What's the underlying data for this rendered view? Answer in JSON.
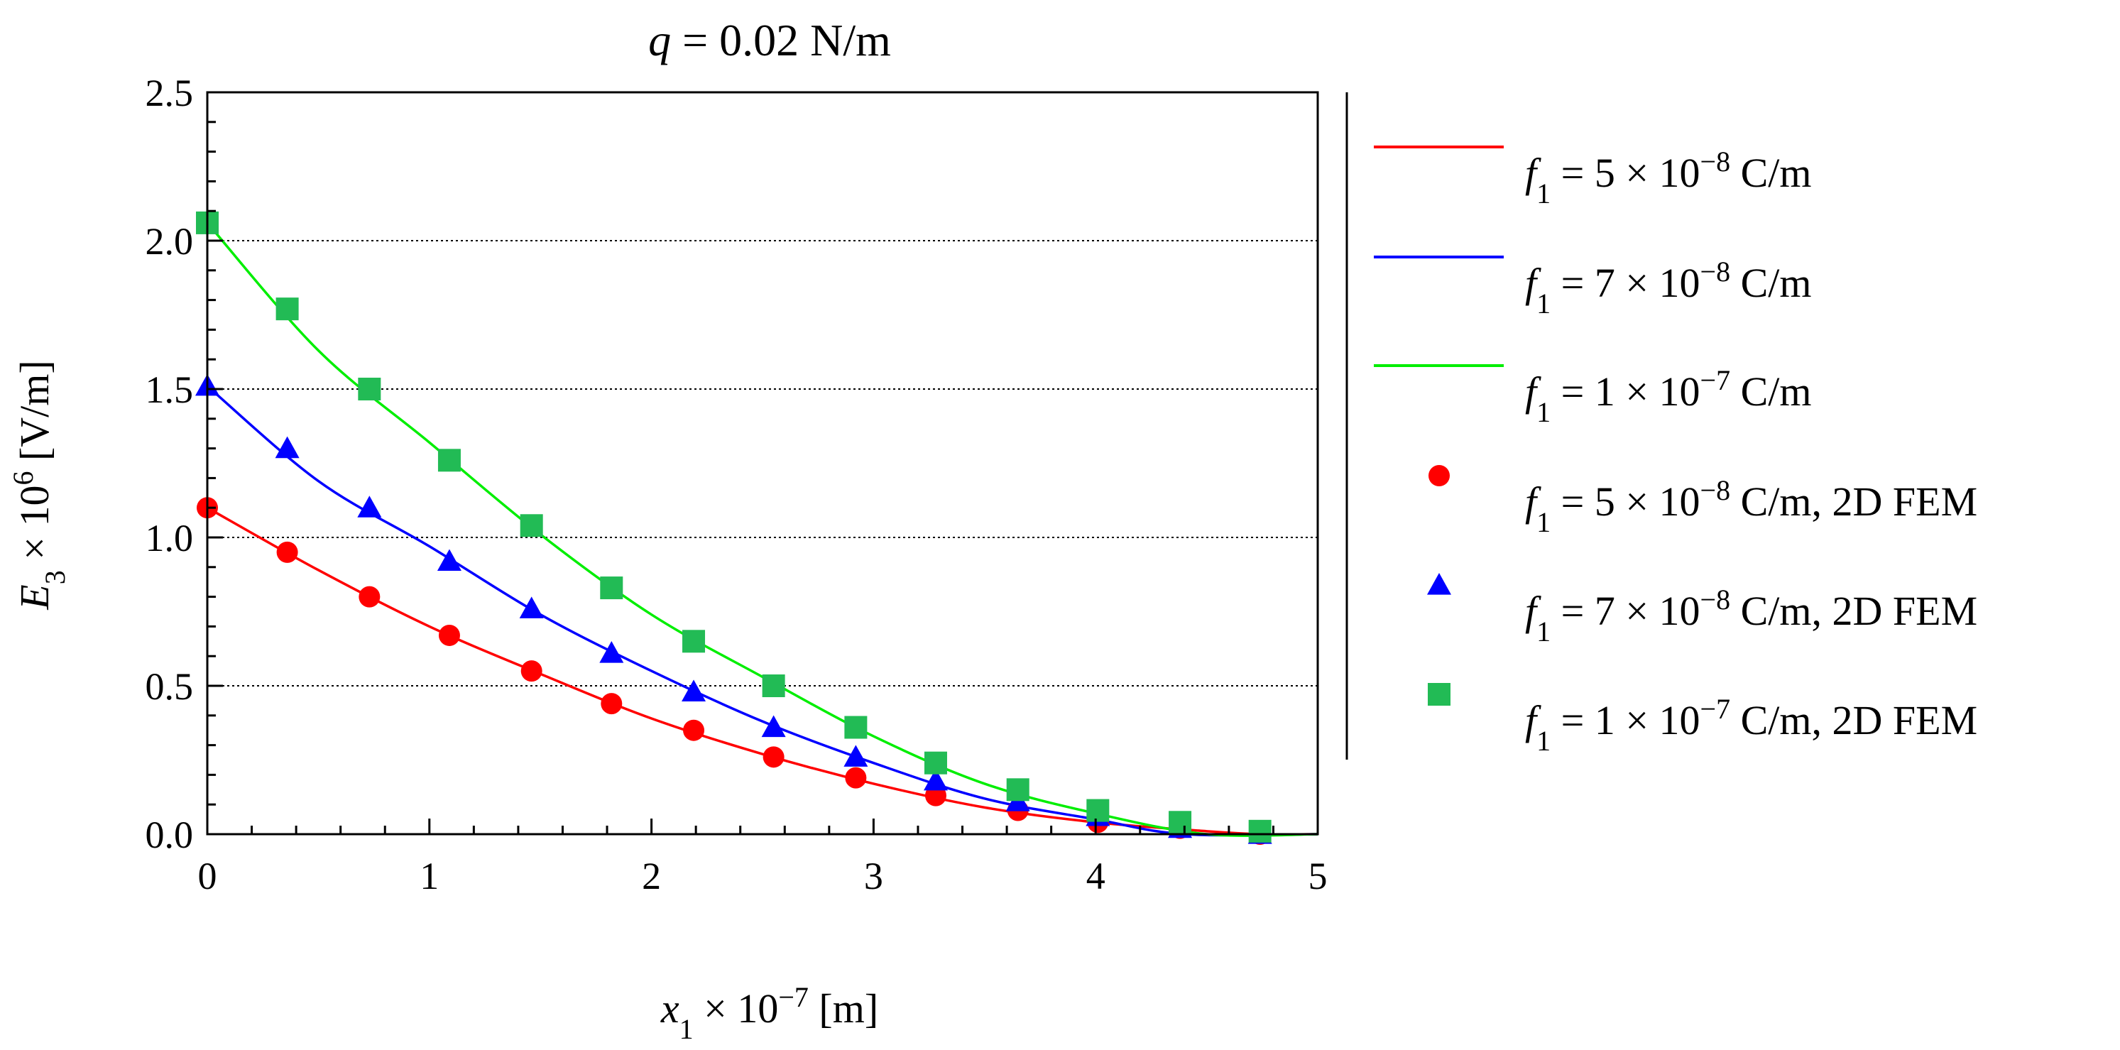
{
  "chart_data": {
    "type": "line",
    "title": {
      "var": "q",
      "rest": " = 0.02 N/m"
    },
    "xlabel": {
      "var": "x",
      "sub": "1",
      "mid": " × 10",
      "sup": "−7",
      "rest": " [m]"
    },
    "ylabel": {
      "var": "E",
      "sub": "3",
      "mid": " × 10",
      "sup": "6",
      "rest": "  [V/m]"
    },
    "xlim": [
      0,
      5
    ],
    "ylim": [
      0,
      2.5
    ],
    "x_ticks": [
      "0",
      "1",
      "2",
      "3",
      "4",
      "5"
    ],
    "y_ticks": [
      "0.0",
      "0.5",
      "1.0",
      "1.5",
      "2.0",
      "2.5"
    ],
    "grid": "horizontal dotted at major y ticks",
    "legend_position": "right",
    "series": [
      {
        "name": {
          "var": "f",
          "sub": "1",
          "mid": " = 5 × 10",
          "sup": "−8",
          "rest": " C/m"
        },
        "kind": "line",
        "color": "#ff0000",
        "x": [
          0,
          0.5,
          1,
          1.5,
          2,
          2.5,
          3,
          3.5,
          4,
          4.5,
          4.75,
          5
        ],
        "y": [
          1.1,
          0.89,
          0.7,
          0.54,
          0.39,
          0.27,
          0.17,
          0.09,
          0.04,
          0.01,
          0.0,
          0.0
        ]
      },
      {
        "name": {
          "var": "f",
          "sub": "1",
          "mid": " = 7 × 10",
          "sup": "−8",
          "rest": " C/m"
        },
        "kind": "line",
        "color": "#0000ff",
        "x": [
          0,
          0.5,
          1,
          1.5,
          2,
          2.5,
          3,
          3.5,
          4,
          4.4,
          5
        ],
        "y": [
          1.51,
          1.19,
          0.97,
          0.74,
          0.55,
          0.38,
          0.24,
          0.12,
          0.05,
          0.0,
          0.0
        ]
      },
      {
        "name": {
          "var": "f",
          "sub": "1",
          "mid": " = 1 × 10",
          "sup": "−7",
          "rest": " C/m"
        },
        "kind": "line",
        "color": "#00ee00",
        "x": [
          0,
          0.5,
          1,
          1.5,
          2,
          2.5,
          3,
          3.5,
          4,
          4.5,
          5
        ],
        "y": [
          2.06,
          1.63,
          1.32,
          1.01,
          0.74,
          0.53,
          0.33,
          0.17,
          0.07,
          0.0,
          0.0
        ]
      },
      {
        "name": {
          "var": "f",
          "sub": "1",
          "mid": " = 5 × 10",
          "sup": "−8",
          "rest": " C/m, 2D FEM"
        },
        "kind": "marker",
        "marker": "circle",
        "color": "#ff0000",
        "x": [
          0,
          0.36,
          0.73,
          1.09,
          1.46,
          1.82,
          2.19,
          2.55,
          2.92,
          3.28,
          3.65,
          4.01,
          4.38,
          4.74
        ],
        "y": [
          1.1,
          0.95,
          0.8,
          0.67,
          0.55,
          0.44,
          0.35,
          0.26,
          0.19,
          0.13,
          0.08,
          0.04,
          0.02,
          0.0
        ]
      },
      {
        "name": {
          "var": "f",
          "sub": "1",
          "mid": " = 7 × 10",
          "sup": "−8",
          "rest": " C/m, 2D FEM"
        },
        "kind": "marker",
        "marker": "triangle",
        "color": "#0000ff",
        "x": [
          0,
          0.36,
          0.73,
          1.09,
          1.46,
          1.82,
          2.19,
          2.55,
          2.92,
          3.28,
          3.65,
          4.01,
          4.38,
          4.74
        ],
        "y": [
          1.51,
          1.3,
          1.1,
          0.92,
          0.76,
          0.61,
          0.48,
          0.36,
          0.26,
          0.18,
          0.11,
          0.06,
          0.02,
          0.0
        ]
      },
      {
        "name": {
          "var": "f",
          "sub": "1",
          "mid": " = 1 × 10",
          "sup": "−7",
          "rest": " C/m, 2D FEM"
        },
        "kind": "marker",
        "marker": "square",
        "color": "#22bb55",
        "x": [
          0,
          0.36,
          0.73,
          1.09,
          1.46,
          1.82,
          2.19,
          2.55,
          2.92,
          3.28,
          3.65,
          4.01,
          4.38,
          4.74
        ],
        "y": [
          2.06,
          1.77,
          1.5,
          1.26,
          1.04,
          0.83,
          0.65,
          0.5,
          0.36,
          0.24,
          0.15,
          0.08,
          0.04,
          0.01
        ]
      }
    ]
  }
}
